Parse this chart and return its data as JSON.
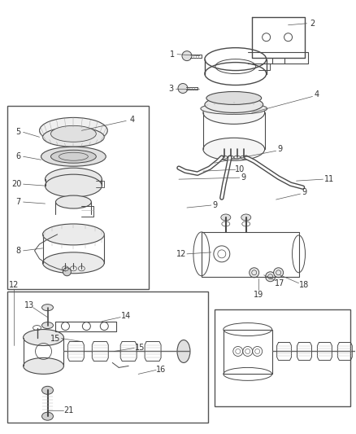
{
  "bg_color": "#ffffff",
  "lc": "#4a4a4a",
  "lc_thin": "#888888",
  "label_color": "#333333",
  "fig_width": 4.38,
  "fig_height": 5.33,
  "dpi": 100
}
